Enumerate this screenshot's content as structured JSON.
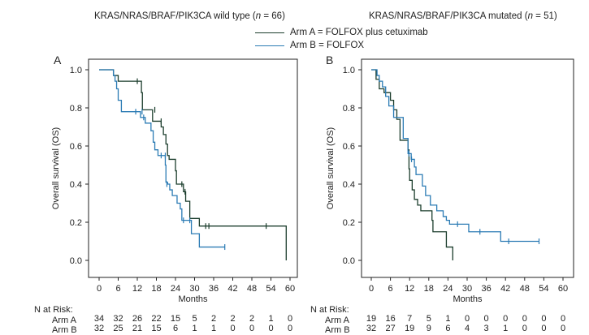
{
  "legend": {
    "items": [
      {
        "label": "Arm A = FOLFOX plus cetuximab",
        "color": "#1b3d2c"
      },
      {
        "label": "Arm B = FOLFOX",
        "color": "#2b7bb4"
      }
    ]
  },
  "risk_table": {
    "header": "N at Risk:",
    "row_labels": [
      "Arm A",
      "Arm B"
    ]
  },
  "chart_data": [
    {
      "type": "line",
      "subtype": "kaplan-meier",
      "panel": "A",
      "title": "KRAS/NRAS/BRAF/PIK3CA wild type (n = 66)",
      "title_prefix": "KRAS/NRAS/BRAF/PIK3CA wild type (",
      "title_n": "n",
      "title_suffix": " = 66)",
      "xlabel": "Months",
      "ylabel": "Overall survival (OS)",
      "xlim": [
        0,
        60
      ],
      "ylim": [
        0,
        1
      ],
      "xticks": [
        0,
        6,
        12,
        18,
        24,
        30,
        36,
        42,
        48,
        54,
        60
      ],
      "yticks": [
        "0.0",
        "0.2",
        "0.4",
        "0.6",
        "0.8",
        "1.0"
      ],
      "ytick_values": [
        0,
        0.2,
        0.4,
        0.6,
        0.8,
        1.0
      ],
      "grid": false,
      "series": [
        {
          "name": "Arm A",
          "steps": [
            [
              0,
              1.0
            ],
            [
              4.5,
              0.97
            ],
            [
              6.0,
              0.94
            ],
            [
              13.3,
              0.88
            ],
            [
              13.6,
              0.79
            ],
            [
              16.8,
              0.73
            ],
            [
              19.5,
              0.7
            ],
            [
              20.2,
              0.66
            ],
            [
              21.0,
              0.61
            ],
            [
              21.5,
              0.55
            ],
            [
              22.0,
              0.53
            ],
            [
              24.0,
              0.47
            ],
            [
              24.3,
              0.4
            ],
            [
              26.5,
              0.36
            ],
            [
              27.2,
              0.31
            ],
            [
              28.5,
              0.22
            ],
            [
              31.5,
              0.18
            ],
            [
              58.8,
              0.0
            ]
          ],
          "end": 58.8,
          "censors": [
            [
              12.0,
              0.94
            ],
            [
              17.5,
              0.79
            ],
            [
              19.5,
              0.73
            ],
            [
              26.0,
              0.4
            ],
            [
              27.0,
              0.36
            ],
            [
              33.5,
              0.18
            ],
            [
              34.5,
              0.18
            ],
            [
              52.5,
              0.18
            ]
          ]
        },
        {
          "name": "Arm B",
          "steps": [
            [
              0,
              1.0
            ],
            [
              4.5,
              0.97
            ],
            [
              5.0,
              0.94
            ],
            [
              5.5,
              0.9
            ],
            [
              6.0,
              0.84
            ],
            [
              7.0,
              0.78
            ],
            [
              13.0,
              0.75
            ],
            [
              14.5,
              0.72
            ],
            [
              16.3,
              0.68
            ],
            [
              17.0,
              0.62
            ],
            [
              17.5,
              0.58
            ],
            [
              18.5,
              0.55
            ],
            [
              20.8,
              0.5
            ],
            [
              21.0,
              0.41
            ],
            [
              21.5,
              0.4
            ],
            [
              22.2,
              0.37
            ],
            [
              23.0,
              0.34
            ],
            [
              24.5,
              0.3
            ],
            [
              25.5,
              0.27
            ],
            [
              26.0,
              0.21
            ],
            [
              29.0,
              0.14
            ],
            [
              31.5,
              0.07
            ]
          ],
          "end": 39.5,
          "censors": [
            [
              11.5,
              0.78
            ],
            [
              13.5,
              0.78
            ],
            [
              14.0,
              0.75
            ],
            [
              19.5,
              0.55
            ],
            [
              20.8,
              0.55
            ],
            [
              21.3,
              0.4
            ],
            [
              26.5,
              0.21
            ],
            [
              28.5,
              0.21
            ],
            [
              39.5,
              0.07
            ]
          ]
        }
      ],
      "at_risk": {
        "Arm A": [
          34,
          32,
          26,
          22,
          15,
          5,
          2,
          2,
          2,
          1,
          0
        ],
        "Arm B": [
          32,
          25,
          21,
          15,
          6,
          1,
          1,
          0,
          0,
          0,
          0
        ]
      }
    },
    {
      "type": "line",
      "subtype": "kaplan-meier",
      "panel": "B",
      "title": "KRAS/NRAS/BRAF/PIK3CA mutated (n = 51)",
      "title_prefix": "KRAS/NRAS/BRAF/PIK3CA mutated (",
      "title_n": "n",
      "title_suffix": " = 51)",
      "xlabel": "Months",
      "ylabel": "Overall survival (OS)",
      "xlim": [
        0,
        60
      ],
      "ylim": [
        0,
        1
      ],
      "xticks": [
        0,
        6,
        12,
        18,
        24,
        30,
        36,
        42,
        48,
        54,
        60
      ],
      "yticks": [
        "0.0",
        "0.2",
        "0.4",
        "0.6",
        "0.8",
        "1.0"
      ],
      "ytick_values": [
        0,
        0.2,
        0.4,
        0.6,
        0.8,
        1.0
      ],
      "grid": false,
      "series": [
        {
          "name": "Arm A",
          "steps": [
            [
              0,
              1.0
            ],
            [
              1.5,
              0.95
            ],
            [
              2.5,
              0.9
            ],
            [
              4.0,
              0.88
            ],
            [
              6.0,
              0.84
            ],
            [
              7.0,
              0.79
            ],
            [
              8.0,
              0.74
            ],
            [
              9.0,
              0.63
            ],
            [
              11.5,
              0.58
            ],
            [
              11.8,
              0.48
            ],
            [
              12.0,
              0.42
            ],
            [
              12.8,
              0.37
            ],
            [
              13.5,
              0.32
            ],
            [
              14.5,
              0.29
            ],
            [
              15.5,
              0.26
            ],
            [
              19.0,
              0.21
            ],
            [
              19.3,
              0.15
            ],
            [
              23.5,
              0.07
            ],
            [
              25.5,
              0.0
            ]
          ],
          "end": 25.5,
          "censors": []
        },
        {
          "name": "Arm B",
          "steps": [
            [
              0,
              1.0
            ],
            [
              1.8,
              0.97
            ],
            [
              2.5,
              0.94
            ],
            [
              3.5,
              0.91
            ],
            [
              4.5,
              0.86
            ],
            [
              5.5,
              0.81
            ],
            [
              7.0,
              0.75
            ],
            [
              10.0,
              0.64
            ],
            [
              11.5,
              0.56
            ],
            [
              12.5,
              0.53
            ],
            [
              13.5,
              0.49
            ],
            [
              14.0,
              0.45
            ],
            [
              16.0,
              0.39
            ],
            [
              17.0,
              0.34
            ],
            [
              18.5,
              0.29
            ],
            [
              20.5,
              0.26
            ],
            [
              22.5,
              0.23
            ],
            [
              23.5,
              0.21
            ],
            [
              24.5,
              0.19
            ],
            [
              30.5,
              0.15
            ],
            [
              40.5,
              0.1
            ]
          ],
          "end": 52.5,
          "censors": [
            [
              11.8,
              0.56
            ],
            [
              12.6,
              0.53
            ],
            [
              27.0,
              0.19
            ],
            [
              34.0,
              0.15
            ],
            [
              43.0,
              0.1
            ],
            [
              52.5,
              0.1
            ]
          ]
        }
      ],
      "at_risk": {
        "Arm A": [
          19,
          16,
          7,
          5,
          1,
          0,
          0,
          0,
          0,
          0,
          0
        ],
        "Arm B": [
          32,
          27,
          19,
          9,
          6,
          4,
          3,
          1,
          0,
          0,
          0
        ]
      }
    }
  ]
}
